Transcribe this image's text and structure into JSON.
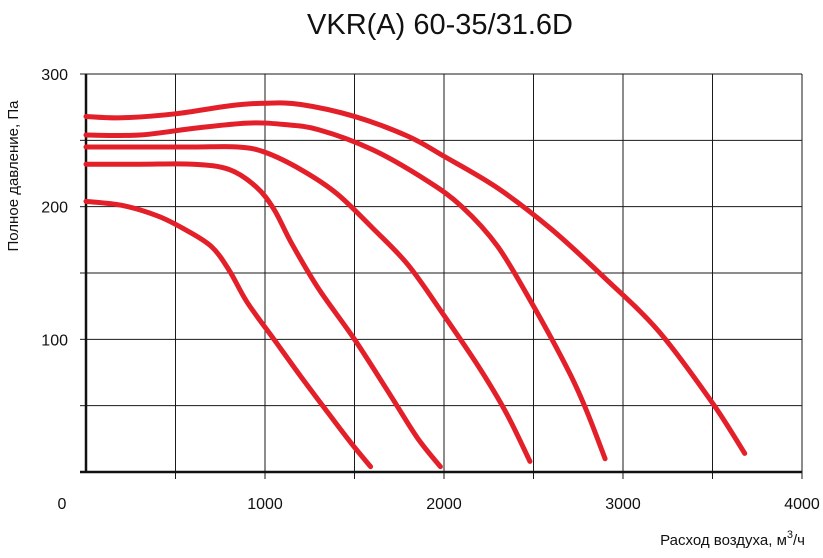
{
  "chart_data": {
    "type": "line",
    "title": "VKR(A) 60-35/31.6D",
    "xlabel_main": "Расход воздуха, м",
    "xlabel_sup": "3",
    "xlabel_tail": "/ч",
    "ylabel": "Полное давление, Па",
    "origin_label": "0",
    "xlim": [
      0,
      4000
    ],
    "ylim": [
      0,
      300
    ],
    "x_ticks": [
      1000,
      2000,
      3000,
      4000
    ],
    "x_tick_labels": [
      "1000",
      "2000",
      "3000",
      "4000"
    ],
    "y_ticks": [
      100,
      200,
      300
    ],
    "y_tick_labels": [
      "100",
      "200",
      "300"
    ],
    "x_grid_step": 500,
    "y_grid_step": 50,
    "grid": true,
    "line_color": "#e3202a",
    "series": [
      {
        "points": [
          [
            0,
            268
          ],
          [
            200,
            267
          ],
          [
            500,
            270
          ],
          [
            800,
            276
          ],
          [
            1000,
            278
          ],
          [
            1200,
            277
          ],
          [
            1500,
            268
          ],
          [
            1800,
            253
          ],
          [
            2000,
            238
          ],
          [
            2300,
            214
          ],
          [
            2600,
            183
          ],
          [
            2900,
            146
          ],
          [
            3200,
            106
          ],
          [
            3500,
            52
          ],
          [
            3680,
            14
          ]
        ]
      },
      {
        "points": [
          [
            0,
            254
          ],
          [
            300,
            254
          ],
          [
            600,
            259
          ],
          [
            900,
            263
          ],
          [
            1100,
            262
          ],
          [
            1300,
            258
          ],
          [
            1600,
            243
          ],
          [
            1900,
            220
          ],
          [
            2100,
            200
          ],
          [
            2300,
            170
          ],
          [
            2500,
            125
          ],
          [
            2700,
            75
          ],
          [
            2800,
            45
          ],
          [
            2900,
            10
          ]
        ]
      },
      {
        "points": [
          [
            0,
            245
          ],
          [
            300,
            245
          ],
          [
            600,
            245
          ],
          [
            850,
            245
          ],
          [
            1000,
            241
          ],
          [
            1200,
            228
          ],
          [
            1400,
            210
          ],
          [
            1600,
            184
          ],
          [
            1800,
            156
          ],
          [
            2000,
            118
          ],
          [
            2200,
            78
          ],
          [
            2350,
            44
          ],
          [
            2480,
            8
          ]
        ]
      },
      {
        "points": [
          [
            0,
            232
          ],
          [
            300,
            232
          ],
          [
            600,
            232
          ],
          [
            800,
            228
          ],
          [
            950,
            215
          ],
          [
            1050,
            198
          ],
          [
            1150,
            172
          ],
          [
            1300,
            138
          ],
          [
            1500,
            100
          ],
          [
            1700,
            58
          ],
          [
            1850,
            26
          ],
          [
            1980,
            4
          ]
        ]
      },
      {
        "points": [
          [
            0,
            204
          ],
          [
            200,
            201
          ],
          [
            400,
            193
          ],
          [
            550,
            183
          ],
          [
            700,
            170
          ],
          [
            800,
            152
          ],
          [
            900,
            128
          ],
          [
            1050,
            100
          ],
          [
            1200,
            72
          ],
          [
            1350,
            45
          ],
          [
            1480,
            22
          ],
          [
            1590,
            4
          ]
        ]
      }
    ]
  }
}
